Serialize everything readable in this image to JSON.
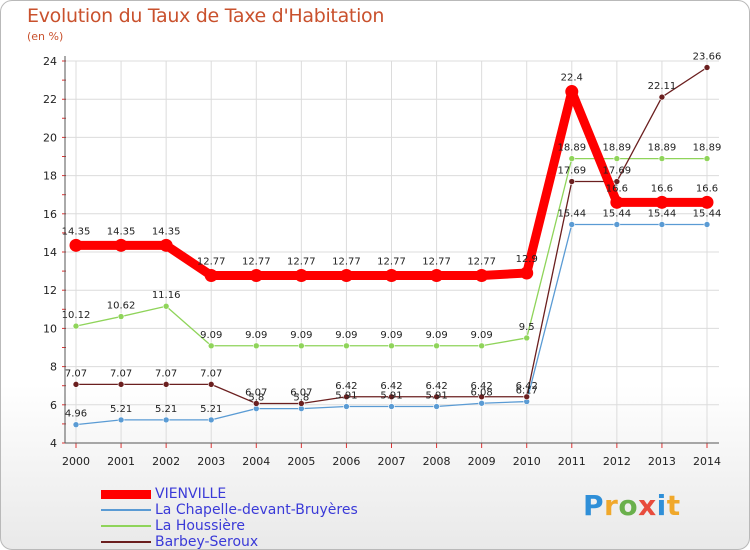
{
  "title": "Evolution du Taux de Taxe d'Habitation",
  "subtitle": "(en %)",
  "logo_text": "Proxiti",
  "chart_data": {
    "type": "line",
    "title": "Evolution du Taux de Taxe d'Habitation",
    "subtitle": "(en %)",
    "categories": [
      "2000",
      "2001",
      "2002",
      "2003",
      "2004",
      "2005",
      "2006",
      "2007",
      "2008",
      "2009",
      "2010",
      "2011",
      "2012",
      "2013",
      "2014"
    ],
    "ylim": [
      4,
      24
    ],
    "yticks": [
      "4",
      "6",
      "8",
      "10",
      "12",
      "14",
      "16",
      "18",
      "20",
      "22",
      "24"
    ],
    "grid": true,
    "legend_position": "bottom-left",
    "series": [
      {
        "name": "VIENVILLE",
        "color": "#ff0000",
        "values": [
          14.35,
          14.35,
          14.35,
          12.77,
          12.77,
          12.77,
          12.77,
          12.77,
          12.77,
          12.77,
          12.9,
          22.4,
          16.6,
          16.6,
          16.6
        ],
        "labels": [
          "14.35",
          "14.35",
          "14.35",
          "12.77",
          "12.77",
          "12.77",
          "12.77",
          "12.77",
          "12.77",
          "12.77",
          "12.9",
          "22.4",
          "16.6",
          "16.6",
          "16.6"
        ]
      },
      {
        "name": "La Chapelle-devant-Bruyères",
        "color": "#5a9bd4",
        "values": [
          4.96,
          5.21,
          5.21,
          5.21,
          5.8,
          5.8,
          5.91,
          5.91,
          5.91,
          6.08,
          6.17,
          15.44,
          15.44,
          15.44,
          15.44
        ],
        "labels": [
          "4.96",
          "5.21",
          "5.21",
          "5.21",
          "5.8",
          "5.8",
          "5.91",
          "5.91",
          "5.91",
          "6.08",
          "6.17",
          "15.44",
          "15.44",
          "15.44",
          "15.44"
        ]
      },
      {
        "name": "La Houssière",
        "color": "#8fd45a",
        "values": [
          10.12,
          10.62,
          11.16,
          9.09,
          9.09,
          9.09,
          9.09,
          9.09,
          9.09,
          9.09,
          9.5,
          18.89,
          18.89,
          18.89,
          18.89
        ],
        "labels": [
          "10.12",
          "10.62",
          "11.16",
          "9.09",
          "9.09",
          "9.09",
          "9.09",
          "9.09",
          "9.09",
          "9.09",
          "9.5",
          "18.89",
          "18.89",
          "18.89",
          "18.89"
        ]
      },
      {
        "name": "Barbey-Seroux",
        "color": "#6b1f1f",
        "values": [
          7.07,
          7.07,
          7.07,
          7.07,
          6.07,
          6.07,
          6.42,
          6.42,
          6.42,
          6.42,
          6.42,
          17.69,
          17.69,
          22.11,
          23.66
        ],
        "labels": [
          "7.07",
          "7.07",
          "7.07",
          "7.07",
          "6.07",
          "6.07",
          "6.42",
          "6.42",
          "6.42",
          "6.42",
          "6.42",
          "17.69",
          "17.69",
          "22.11",
          "23.66"
        ]
      }
    ]
  }
}
